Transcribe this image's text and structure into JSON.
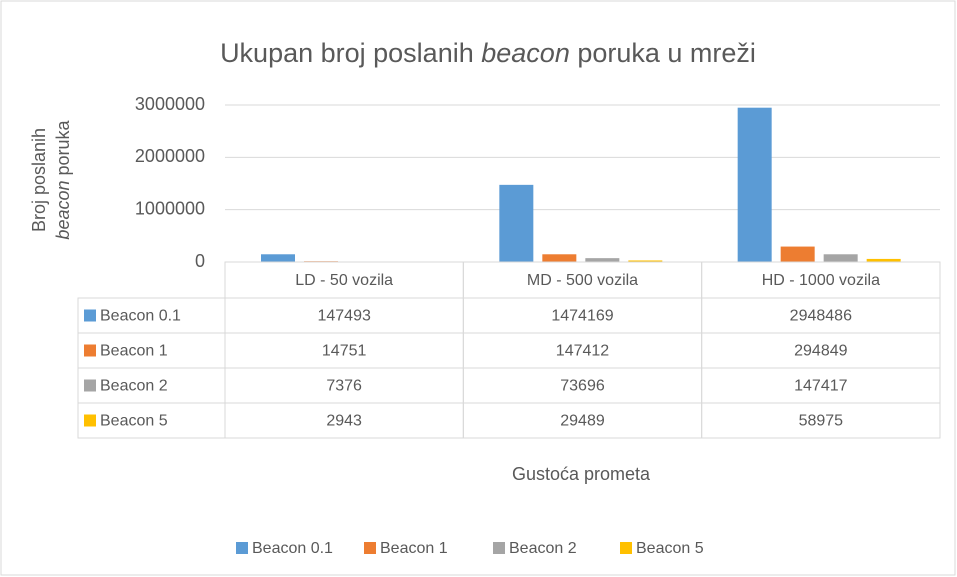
{
  "chart_data": {
    "type": "bar",
    "title": [
      "Ukupan broj poslanih",
      "beacon",
      "poruka u mreži"
    ],
    "y_label": [
      "Broj poslanih",
      "beacon",
      "poruka"
    ],
    "x_label": "Gustoća prometa",
    "categories": [
      "LD - 50 vozila",
      "MD - 500 vozila",
      "HD - 1000 vozila"
    ],
    "series": [
      {
        "name": "Beacon 0.1",
        "color": "#5b9bd5",
        "values": [
          147493,
          1474169,
          2948486
        ]
      },
      {
        "name": "Beacon 1",
        "color": "#ed7d31",
        "values": [
          14751,
          147412,
          294849
        ]
      },
      {
        "name": "Beacon 2",
        "color": "#a5a5a5",
        "values": [
          7376,
          73696,
          147417
        ]
      },
      {
        "name": "Beacon 5",
        "color": "#ffc000",
        "values": [
          2943,
          29489,
          58975
        ]
      }
    ],
    "ylim": [
      0,
      3000000
    ],
    "yticks": [
      0,
      1000000,
      2000000,
      3000000
    ],
    "grid": true,
    "legend": "bottom",
    "data_table": true
  }
}
